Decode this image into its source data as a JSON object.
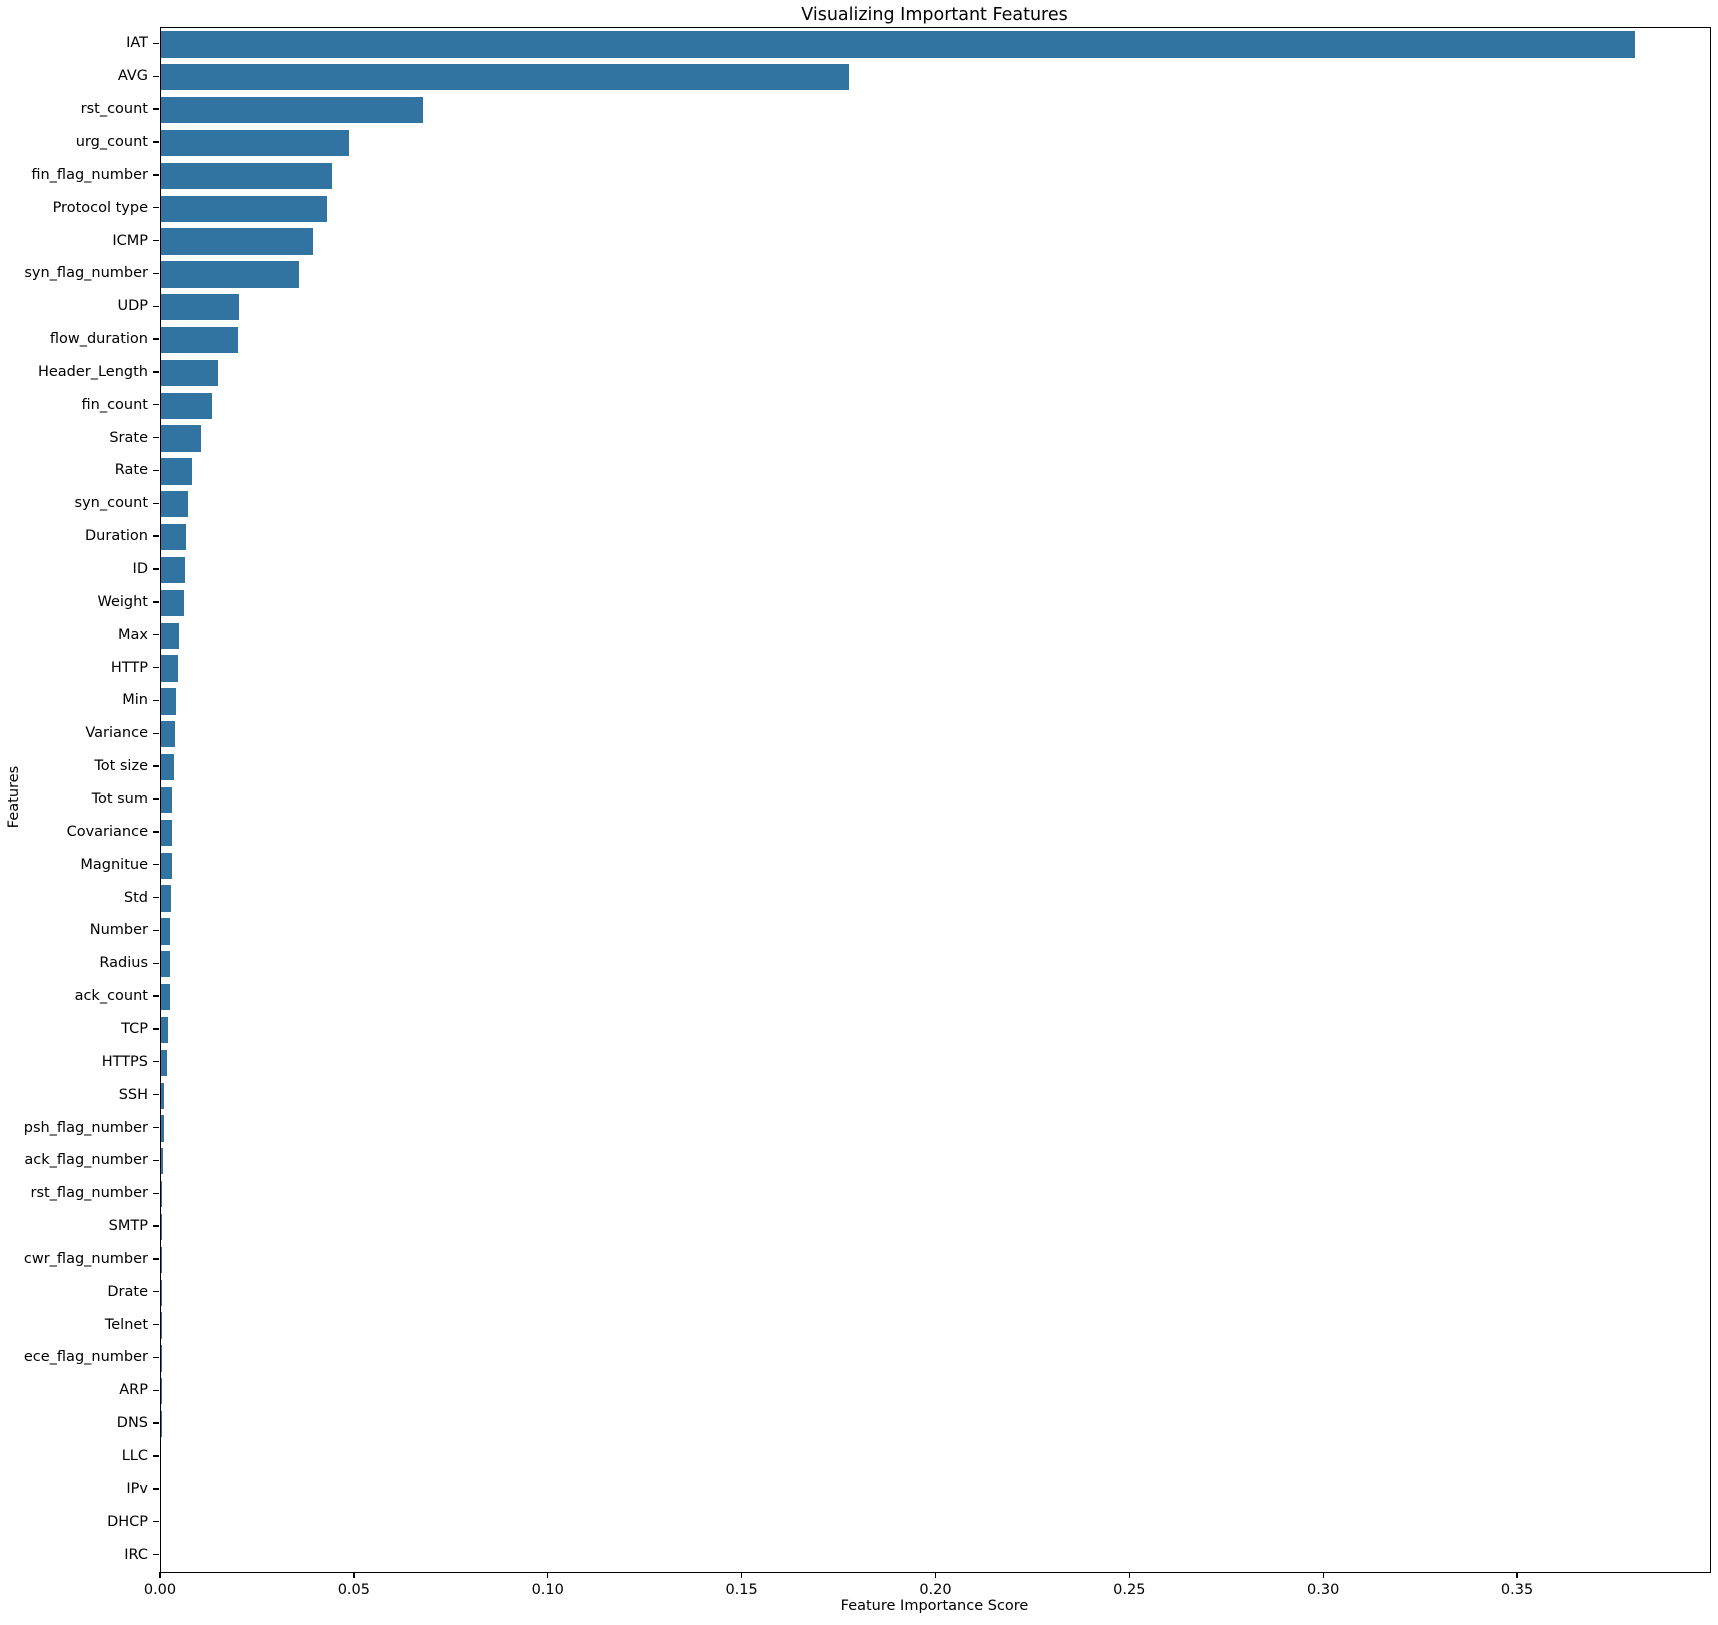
{
  "chart_data": {
    "type": "bar",
    "orientation": "horizontal",
    "title": "Visualizing Important Features",
    "xlabel": "Feature Importance Score",
    "ylabel": "Features",
    "bar_color": "#3274a1",
    "xlim": [
      0,
      0.3995
    ],
    "xticks": [
      0.0,
      0.05,
      0.1,
      0.15,
      0.2,
      0.25,
      0.3,
      0.35
    ],
    "xtick_labels": [
      "0.00",
      "0.05",
      "0.10",
      "0.15",
      "0.20",
      "0.25",
      "0.30",
      "0.35"
    ],
    "grid": false,
    "legend": "none",
    "categories": [
      "IAT",
      "AVG",
      "rst_count",
      "urg_count",
      "fin_flag_number",
      "Protocol type",
      "ICMP",
      "syn_flag_number",
      "UDP",
      "flow_duration",
      "Header_Length",
      "fin_count",
      "Srate",
      "Rate",
      "syn_count",
      "Duration",
      "ID",
      "Weight",
      "Max",
      "HTTP",
      "Min",
      "Variance",
      "Tot size",
      "Tot sum",
      "Covariance",
      "Magnitue",
      "Std",
      "Number",
      "Radius",
      "ack_count",
      "TCP",
      "HTTPS",
      "SSH",
      "psh_flag_number",
      "ack_flag_number",
      "rst_flag_number",
      "SMTP",
      "cwr_flag_number",
      "Drate",
      "Telnet",
      "ece_flag_number",
      "ARP",
      "DNS",
      "LLC",
      "IPv",
      "DHCP",
      "IRC"
    ],
    "values": [
      0.3802,
      0.1774,
      0.0677,
      0.0484,
      0.0441,
      0.0429,
      0.0391,
      0.0355,
      0.02,
      0.0199,
      0.0148,
      0.0132,
      0.0103,
      0.0081,
      0.007,
      0.0064,
      0.0061,
      0.006,
      0.0046,
      0.0044,
      0.0038,
      0.0036,
      0.0033,
      0.0029,
      0.0029,
      0.0028,
      0.0026,
      0.0024,
      0.0023,
      0.0023,
      0.0019,
      0.0016,
      0.0009,
      0.0007,
      0.0005,
      0.00028,
      0.00027,
      0.00025,
      0.00016,
      0.0001,
      7e-05,
      4e-05,
      3e-05,
      2e-05,
      2e-05,
      1e-05,
      5e-06
    ]
  }
}
